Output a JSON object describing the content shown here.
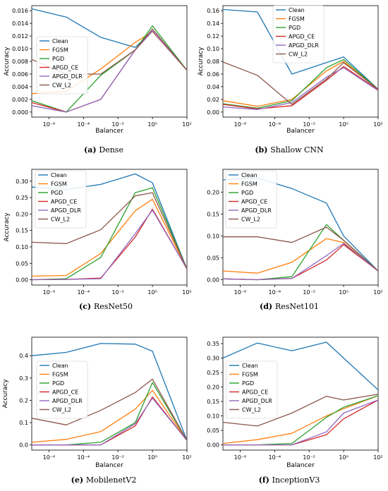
{
  "legend": [
    "Clean",
    "FGSM",
    "PGD",
    "APGD_CE",
    "APGD_DLR",
    "CW_L2"
  ],
  "colors": {
    "Clean": "#1f77b4",
    "FGSM": "#ff7f0e",
    "PGD": "#2ca02c",
    "APGD_CE": "#d62728",
    "APGD_DLR": "#9467bd",
    "CW_L2": "#8c564b"
  },
  "chart_data": [
    {
      "type": "line",
      "panel_letter": "(a)",
      "panel_title": "Dense",
      "xlabel": "Balancer",
      "ylabel": "Accuracy",
      "xscale": "log",
      "xlim": [
        1e-07,
        100
      ],
      "ylim": [
        -0.0008,
        0.0168
      ],
      "x": [
        1e-07,
        1e-05,
        0.001,
        0.1,
        1,
        100
      ],
      "x_ticks": [
        "10⁻⁶",
        "10⁻⁴",
        "10⁻²",
        "10⁰",
        "10²"
      ],
      "y_ticks": [
        "0.000",
        "0.002",
        "0.004",
        "0.006",
        "0.008",
        "0.010",
        "0.012",
        "0.014",
        "0.016"
      ],
      "legend_position": "center-left",
      "series": [
        {
          "name": "Clean",
          "values": [
            0.0163,
            0.015,
            0.0118,
            0.0102,
            0.0128,
            0.0066
          ]
        },
        {
          "name": "FGSM",
          "values": [
            0.0029,
            0.0033,
            0.0068,
            0.011,
            0.0127,
            0.0066
          ]
        },
        {
          "name": "PGD",
          "values": [
            0.0018,
            0.0,
            0.0058,
            0.0098,
            0.0136,
            0.0066
          ]
        },
        {
          "name": "APGD_CE",
          "values": [
            0.0015,
            0.0,
            0.002,
            0.0098,
            0.0128,
            0.0066
          ]
        },
        {
          "name": "APGD_DLR",
          "values": [
            0.001,
            0.0,
            0.002,
            0.0098,
            0.0128,
            0.0066
          ]
        },
        {
          "name": "CW_L2",
          "values": [
            0.0083,
            0.006,
            0.006,
            0.0098,
            0.0131,
            0.0066
          ]
        }
      ]
    },
    {
      "type": "line",
      "panel_letter": "(b)",
      "panel_title": "Shallow CNN",
      "xlabel": "Balancer",
      "ylabel": "Accuracy",
      "xscale": "log",
      "xlim": [
        1e-07,
        100
      ],
      "ylim": [
        -0.008,
        0.168
      ],
      "x": [
        1e-07,
        1e-05,
        0.001,
        0.1,
        1,
        100
      ],
      "x_ticks": [
        "10⁻⁶",
        "10⁻⁴",
        "10⁻²",
        "10⁰",
        "10²"
      ],
      "y_ticks": [
        "0.00",
        "0.02",
        "0.04",
        "0.06",
        "0.08",
        "0.10",
        "0.12",
        "0.14",
        "0.16"
      ],
      "legend_position": "upper-right",
      "series": [
        {
          "name": "Clean",
          "values": [
            0.162,
            0.158,
            0.06,
            0.078,
            0.087,
            0.036
          ]
        },
        {
          "name": "FGSM",
          "values": [
            0.018,
            0.009,
            0.02,
            0.065,
            0.08,
            0.036
          ]
        },
        {
          "name": "PGD",
          "values": [
            0.013,
            0.006,
            0.018,
            0.07,
            0.083,
            0.036
          ]
        },
        {
          "name": "APGD_CE",
          "values": [
            0.012,
            0.005,
            0.01,
            0.05,
            0.072,
            0.035
          ]
        },
        {
          "name": "APGD_DLR",
          "values": [
            0.008,
            0.004,
            0.015,
            0.055,
            0.07,
            0.034
          ]
        },
        {
          "name": "CW_L2",
          "values": [
            0.079,
            0.058,
            0.012,
            0.052,
            0.078,
            0.036
          ]
        }
      ]
    },
    {
      "type": "line",
      "panel_letter": "(c)",
      "panel_title": "ResNet50",
      "xlabel": "",
      "ylabel": "Accuracy",
      "xscale": "log",
      "xlim": [
        1e-07,
        100
      ],
      "ylim": [
        -0.016,
        0.336
      ],
      "x": [
        1e-07,
        1e-05,
        0.001,
        0.1,
        1,
        100
      ],
      "x_ticks": [
        "10⁻⁶",
        "10⁻⁴",
        "10⁻²",
        "10⁰",
        "10²"
      ],
      "y_ticks": [
        "0.00",
        "0.05",
        "0.10",
        "0.15",
        "0.20",
        "0.25",
        "0.30"
      ],
      "legend_position": "upper-left",
      "series": [
        {
          "name": "Clean",
          "values": [
            0.282,
            0.275,
            0.29,
            0.322,
            0.295,
            0.033
          ]
        },
        {
          "name": "FGSM",
          "values": [
            0.011,
            0.013,
            0.08,
            0.21,
            0.245,
            0.033
          ]
        },
        {
          "name": "PGD",
          "values": [
            0.0,
            0.003,
            0.068,
            0.265,
            0.28,
            0.033
          ]
        },
        {
          "name": "APGD_CE",
          "values": [
            0.0,
            0.001,
            0.005,
            0.13,
            0.215,
            0.033
          ]
        },
        {
          "name": "APGD_DLR",
          "values": [
            0.0,
            0.001,
            0.003,
            0.14,
            0.212,
            0.033
          ]
        },
        {
          "name": "CW_L2",
          "values": [
            0.114,
            0.11,
            0.152,
            0.255,
            0.265,
            0.033
          ]
        }
      ]
    },
    {
      "type": "line",
      "panel_letter": "(d)",
      "panel_title": "ResNet101",
      "xlabel": "",
      "ylabel": "",
      "xscale": "log",
      "xlim": [
        1e-07,
        100
      ],
      "ylim": [
        -0.012,
        0.252
      ],
      "x": [
        1e-07,
        1e-05,
        0.001,
        0.1,
        1,
        100
      ],
      "x_ticks": [
        "10⁻⁶",
        "10⁻⁴",
        "10⁻²",
        "10⁰",
        "10²"
      ],
      "y_ticks": [
        "0.00",
        "0.05",
        "0.10",
        "0.15",
        "0.20"
      ],
      "legend_position": "upper-left",
      "series": [
        {
          "name": "Clean",
          "values": [
            0.228,
            0.232,
            0.208,
            0.175,
            0.1,
            0.02
          ]
        },
        {
          "name": "FGSM",
          "values": [
            0.02,
            0.015,
            0.04,
            0.094,
            0.085,
            0.02
          ]
        },
        {
          "name": "PGD",
          "values": [
            0.002,
            0.0,
            0.007,
            0.126,
            0.09,
            0.02
          ]
        },
        {
          "name": "APGD_CE",
          "values": [
            0.002,
            0.0,
            0.003,
            0.045,
            0.08,
            0.02
          ]
        },
        {
          "name": "APGD_DLR",
          "values": [
            0.002,
            0.0,
            0.003,
            0.055,
            0.083,
            0.02
          ]
        },
        {
          "name": "CW_L2",
          "values": [
            0.098,
            0.098,
            0.085,
            0.12,
            0.09,
            0.02
          ]
        }
      ]
    },
    {
      "type": "line",
      "panel_letter": "(e)",
      "panel_title": "MobilenetV2",
      "xlabel": "Balancer",
      "ylabel": "Accuracy",
      "xscale": "log",
      "xlim": [
        1e-07,
        100
      ],
      "ylim": [
        -0.023,
        0.483
      ],
      "x": [
        1e-07,
        1e-05,
        0.001,
        0.1,
        1,
        100
      ],
      "x_ticks": [
        "10⁻⁶",
        "10⁻⁴",
        "10⁻²",
        "10⁰",
        "10²"
      ],
      "y_ticks": [
        "0.0",
        "0.1",
        "0.2",
        "0.3",
        "0.4"
      ],
      "legend_position": "center-left",
      "series": [
        {
          "name": "Clean",
          "values": [
            0.4,
            0.415,
            0.455,
            0.452,
            0.42,
            0.02
          ]
        },
        {
          "name": "FGSM",
          "values": [
            0.012,
            0.025,
            0.06,
            0.16,
            0.245,
            0.02
          ]
        },
        {
          "name": "PGD",
          "values": [
            0.0,
            0.0,
            0.012,
            0.1,
            0.28,
            0.02
          ]
        },
        {
          "name": "APGD_CE",
          "values": [
            0.0,
            0.0,
            0.0,
            0.085,
            0.215,
            0.02
          ]
        },
        {
          "name": "APGD_DLR",
          "values": [
            0.0,
            0.0,
            0.0,
            0.095,
            0.21,
            0.02
          ]
        },
        {
          "name": "CW_L2",
          "values": [
            0.12,
            0.09,
            0.155,
            0.235,
            0.295,
            0.02
          ]
        }
      ]
    },
    {
      "type": "line",
      "panel_letter": "(f)",
      "panel_title": "InceptionV3",
      "xlabel": "Balancer",
      "ylabel": "",
      "xscale": "log",
      "xlim": [
        1e-07,
        100
      ],
      "ylim": [
        -0.018,
        0.372
      ],
      "x": [
        1e-07,
        1e-05,
        0.001,
        0.1,
        1,
        100
      ],
      "x_ticks": [
        "10⁻⁶",
        "10⁻⁴",
        "10⁻²",
        "10⁰",
        "10²"
      ],
      "y_ticks": [
        "0.00",
        "0.05",
        "0.10",
        "0.15",
        "0.20",
        "0.25",
        "0.30",
        "0.35"
      ],
      "legend_position": "center-left",
      "series": [
        {
          "name": "Clean",
          "values": [
            0.3,
            0.352,
            0.325,
            0.355,
            0.3,
            0.19
          ]
        },
        {
          "name": "FGSM",
          "values": [
            0.005,
            0.018,
            0.04,
            0.1,
            0.125,
            0.17
          ]
        },
        {
          "name": "PGD",
          "values": [
            0.0,
            0.0,
            0.005,
            0.095,
            0.13,
            0.17
          ]
        },
        {
          "name": "APGD_CE",
          "values": [
            0.0,
            0.0,
            0.0,
            0.035,
            0.09,
            0.155
          ]
        },
        {
          "name": "APGD_DLR",
          "values": [
            0.0,
            0.0,
            0.0,
            0.045,
            0.11,
            0.155
          ]
        },
        {
          "name": "CW_L2",
          "values": [
            0.078,
            0.065,
            0.11,
            0.168,
            0.155,
            0.175
          ]
        }
      ]
    }
  ]
}
